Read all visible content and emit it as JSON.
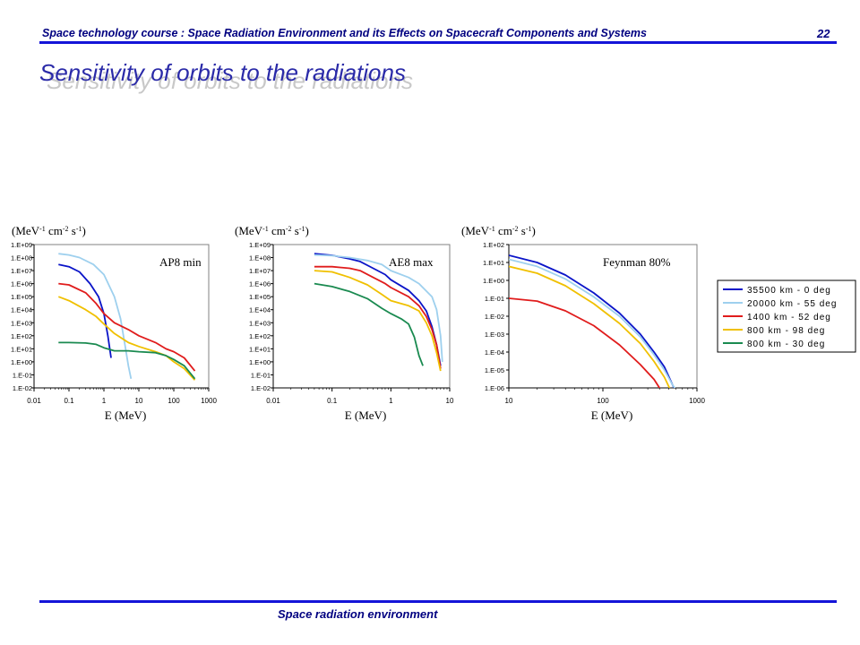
{
  "header": {
    "course_title": "Space technology course : Space Radiation Environment and its Effects on Spacecraft Components and Systems",
    "page_number": "22"
  },
  "slide": {
    "title": "Sensitivity of orbits to the radiations"
  },
  "footer": {
    "text": "Space radiation environment"
  },
  "colors": {
    "header_blue": "#000080",
    "rule_blue": "#1414d8",
    "title_blue": "#2a2aa8"
  },
  "chart_data": [
    {
      "type": "line",
      "label": "AP8 min",
      "ylabel_unit": "(MeV-1 cm-2 s-1)",
      "xlabel": "E (MeV)",
      "x_scale": "log",
      "y_scale": "log",
      "xlim": [
        0.01,
        1000
      ],
      "ylim": [
        0.01,
        1000000000.0
      ],
      "x_ticks": [
        "0.01",
        "0.1",
        "1",
        "10",
        "100",
        "1000"
      ],
      "y_ticks": [
        "1.E-02",
        "1.E-01",
        "1.E+00",
        "1.E+01",
        "1.E+02",
        "1.E+03",
        "1.E+04",
        "1.E+05",
        "1.E+06",
        "1.E+07",
        "1.E+08",
        "1.E+09"
      ],
      "series": [
        {
          "name": "35500 km - 0 deg",
          "color": "#0a14c8",
          "points": [
            [
              0.05,
              30000000.0
            ],
            [
              0.1,
              20000000.0
            ],
            [
              0.2,
              8000000.0
            ],
            [
              0.4,
              1000000.0
            ],
            [
              0.7,
              100000.0
            ],
            [
              1.0,
              5000.0
            ],
            [
              1.3,
              100.0
            ],
            [
              1.6,
              2
            ]
          ]
        },
        {
          "name": "20000 km - 55 deg",
          "color": "#9ed0ee",
          "points": [
            [
              0.05,
              200000000.0
            ],
            [
              0.1,
              160000000.0
            ],
            [
              0.2,
              100000000.0
            ],
            [
              0.5,
              30000000.0
            ],
            [
              1.0,
              5000000.0
            ],
            [
              2.0,
              100000.0
            ],
            [
              3.0,
              2000.0
            ],
            [
              4.0,
              20
            ],
            [
              5.0,
              0.5
            ],
            [
              6.0,
              0.05
            ]
          ]
        },
        {
          "name": "1400 km - 52 deg",
          "color": "#e01c1c",
          "points": [
            [
              0.05,
              1000000.0
            ],
            [
              0.1,
              800000.0
            ],
            [
              0.3,
              200000.0
            ],
            [
              0.6,
              30000.0
            ],
            [
              1.0,
              5000.0
            ],
            [
              2.0,
              1000.0
            ],
            [
              5.0,
              300
            ],
            [
              10,
              100.0
            ],
            [
              30,
              30
            ],
            [
              60,
              10
            ],
            [
              100,
              6
            ],
            [
              200,
              2
            ],
            [
              400,
              0.2
            ]
          ]
        },
        {
          "name": "800 km - 98 deg",
          "color": "#f0c000",
          "points": [
            [
              0.05,
              100000.0
            ],
            [
              0.1,
              50000.0
            ],
            [
              0.3,
              10000.0
            ],
            [
              0.6,
              3000.0
            ],
            [
              1.0,
              800
            ],
            [
              2.0,
              150
            ],
            [
              5.0,
              30
            ],
            [
              10,
              15
            ],
            [
              30,
              6
            ],
            [
              60,
              3
            ],
            [
              100,
              1
            ],
            [
              200,
              0.3
            ],
            [
              400,
              0.04
            ]
          ]
        },
        {
          "name": "800 km - 30 deg",
          "color": "#1a8a50",
          "points": [
            [
              0.05,
              30
            ],
            [
              0.1,
              30
            ],
            [
              0.3,
              28
            ],
            [
              0.6,
              22
            ],
            [
              1.0,
              12
            ],
            [
              2.0,
              7
            ],
            [
              5.0,
              7
            ],
            [
              10,
              6
            ],
            [
              30,
              5
            ],
            [
              60,
              3
            ],
            [
              100,
              1.5
            ],
            [
              200,
              0.5
            ],
            [
              400,
              0.05
            ]
          ]
        }
      ]
    },
    {
      "type": "line",
      "label": "AE8 max",
      "ylabel_unit": "(MeV-1 cm-2 s-1)",
      "xlabel": "E (MeV)",
      "x_scale": "log",
      "y_scale": "log",
      "xlim": [
        0.01,
        10
      ],
      "ylim": [
        0.01,
        1000000000.0
      ],
      "x_ticks": [
        "0.01",
        "0.1",
        "1",
        "10"
      ],
      "y_ticks": [
        "1.E-02",
        "1.E-01",
        "1.E+00",
        "1.E+01",
        "1.E+02",
        "1.E+03",
        "1.E+04",
        "1.E+05",
        "1.E+06",
        "1.E+07",
        "1.E+08",
        "1.E+09"
      ],
      "series": [
        {
          "name": "35500 km - 0 deg",
          "color": "#0a14c8",
          "points": [
            [
              0.05,
              200000000.0
            ],
            [
              0.1,
              150000000.0
            ],
            [
              0.2,
              80000000.0
            ],
            [
              0.3,
              50000000.0
            ],
            [
              0.5,
              15000000.0
            ],
            [
              0.8,
              5000000.0
            ],
            [
              1.0,
              2000000.0
            ],
            [
              2.0,
              300000.0
            ],
            [
              3.0,
              50000.0
            ],
            [
              4.0,
              8000.0
            ],
            [
              5.0,
              500
            ],
            [
              6.0,
              20
            ],
            [
              7.0,
              0.5
            ]
          ]
        },
        {
          "name": "20000 km - 55 deg",
          "color": "#9ed0ee",
          "points": [
            [
              0.05,
              160000000.0
            ],
            [
              0.1,
              140000000.0
            ],
            [
              0.2,
              100000000.0
            ],
            [
              0.4,
              60000000.0
            ],
            [
              0.7,
              30000000.0
            ],
            [
              1.0,
              10000000.0
            ],
            [
              2.0,
              3000000.0
            ],
            [
              3.0,
              1000000.0
            ],
            [
              5.0,
              100000.0
            ],
            [
              6.0,
              10000.0
            ],
            [
              7.0,
              100
            ],
            [
              7.5,
              1
            ]
          ]
        },
        {
          "name": "1400 km - 52 deg",
          "color": "#e01c1c",
          "points": [
            [
              0.05,
              20000000.0
            ],
            [
              0.1,
              20000000.0
            ],
            [
              0.2,
              15000000.0
            ],
            [
              0.3,
              10000000.0
            ],
            [
              0.5,
              3000000.0
            ],
            [
              0.8,
              1000000.0
            ],
            [
              1.0,
              500000.0
            ],
            [
              2.0,
              100000.0
            ],
            [
              3.0,
              20000.0
            ],
            [
              4.0,
              3000.0
            ],
            [
              5.0,
              300
            ],
            [
              6.0,
              20
            ],
            [
              7.0,
              0.3
            ]
          ]
        },
        {
          "name": "800 km - 98 deg",
          "color": "#f0c000",
          "points": [
            [
              0.05,
              10000000.0
            ],
            [
              0.1,
              8000000.0
            ],
            [
              0.2,
              3000000.0
            ],
            [
              0.4,
              800000.0
            ],
            [
              0.7,
              150000.0
            ],
            [
              1.0,
              50000.0
            ],
            [
              2.0,
              20000.0
            ],
            [
              3.0,
              8000.0
            ],
            [
              4.0,
              1000.0
            ],
            [
              5.0,
              100
            ],
            [
              6.0,
              5
            ],
            [
              7.0,
              0.2
            ]
          ]
        },
        {
          "name": "800 km - 30 deg",
          "color": "#1a8a50",
          "points": [
            [
              0.05,
              1000000.0
            ],
            [
              0.1,
              600000.0
            ],
            [
              0.2,
              250000.0
            ],
            [
              0.4,
              70000.0
            ],
            [
              0.7,
              13000.0
            ],
            [
              1.0,
              5000.0
            ],
            [
              1.5,
              2000.0
            ],
            [
              2.0,
              800
            ],
            [
              2.5,
              80
            ],
            [
              3.0,
              3
            ],
            [
              3.5,
              0.5
            ]
          ]
        }
      ]
    },
    {
      "type": "line",
      "label": "Feynman 80%",
      "ylabel_unit": "(MeV-1 cm-2 s-1)",
      "xlabel": "E (MeV)",
      "x_scale": "log",
      "y_scale": "log",
      "xlim": [
        10,
        1000
      ],
      "ylim": [
        1e-06,
        100.0
      ],
      "x_ticks": [
        "10",
        "100",
        "1000"
      ],
      "y_ticks": [
        "1.E-06",
        "1.E-05",
        "1.E-04",
        "1.E-03",
        "1.E-02",
        "1.E-01",
        "1.E+00",
        "1.E+01",
        "1.E+02"
      ],
      "series": [
        {
          "name": "35500 km - 0 deg",
          "color": "#0a14c8",
          "points": [
            [
              10,
              25
            ],
            [
              20,
              10
            ],
            [
              40,
              2
            ],
            [
              80,
              0.2
            ],
            [
              150,
              0.015
            ],
            [
              250,
              0.001
            ],
            [
              350,
              0.0001
            ],
            [
              450,
              1.5e-05
            ],
            [
              550,
              1.5e-06
            ],
            [
              600,
              6e-07
            ]
          ]
        },
        {
          "name": "20000 km - 55 deg",
          "color": "#9ed0ee",
          "points": [
            [
              10,
              15
            ],
            [
              20,
              6
            ],
            [
              40,
              1.2
            ],
            [
              80,
              0.12
            ],
            [
              150,
              0.01
            ],
            [
              250,
              0.0007
            ],
            [
              350,
              7e-05
            ],
            [
              450,
              1e-05
            ],
            [
              550,
              1.5e-06
            ],
            [
              620,
              6e-07
            ]
          ]
        },
        {
          "name": "1400 km - 52 deg",
          "color": "#e01c1c",
          "points": [
            [
              10,
              0.1
            ],
            [
              20,
              0.07
            ],
            [
              40,
              0.02
            ],
            [
              80,
              0.003
            ],
            [
              150,
              0.00025
            ],
            [
              250,
              2e-05
            ],
            [
              350,
              3e-06
            ],
            [
              400,
              1e-06
            ],
            [
              430,
              6e-07
            ]
          ]
        },
        {
          "name": "800 km - 98 deg",
          "color": "#f0c000",
          "points": [
            [
              10,
              6
            ],
            [
              20,
              2.5
            ],
            [
              40,
              0.5
            ],
            [
              80,
              0.05
            ],
            [
              150,
              0.004
            ],
            [
              250,
              0.0003
            ],
            [
              350,
              3e-05
            ],
            [
              450,
              4e-06
            ],
            [
              520,
              8e-07
            ]
          ]
        }
      ],
      "legend": {
        "position": "right",
        "entries": [
          {
            "name": "35500 km - 0 deg",
            "color": "#0a14c8"
          },
          {
            "name": "20000 km - 55 deg",
            "color": "#9ed0ee"
          },
          {
            "name": "1400 km - 52 deg",
            "color": "#e01c1c"
          },
          {
            "name": "800 km - 98 deg",
            "color": "#f0c000"
          },
          {
            "name": "800 km - 30 deg",
            "color": "#1a8a50"
          }
        ]
      }
    }
  ]
}
